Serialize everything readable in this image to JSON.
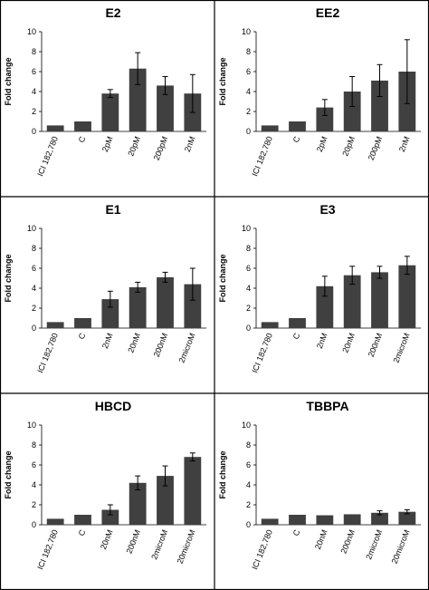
{
  "chart_data": [
    {
      "type": "bar",
      "title": "E2",
      "ylabel": "Fold change",
      "ylim": [
        0,
        10
      ],
      "yticks": [
        "0",
        "2",
        "4",
        "6",
        "8",
        "10"
      ],
      "categories": [
        "ICI 182,780",
        "C",
        "2pM",
        "20pM",
        "200pM",
        "2nM"
      ],
      "values": [
        0.6,
        1.0,
        3.8,
        6.3,
        4.6,
        3.8
      ],
      "errors": [
        0,
        0,
        0.4,
        1.6,
        0.9,
        1.9
      ],
      "color": "#404040"
    },
    {
      "type": "bar",
      "title": "EE2",
      "ylabel": "Fold change",
      "ylim": [
        0,
        10
      ],
      "yticks": [
        "0",
        "2",
        "4",
        "6",
        "8",
        "10"
      ],
      "categories": [
        "ICI 182,780",
        "C",
        "2pM",
        "20pM",
        "200pM",
        "2nM"
      ],
      "values": [
        0.6,
        1.0,
        2.4,
        4.0,
        5.1,
        6.0
      ],
      "errors": [
        0,
        0,
        0.8,
        1.5,
        1.6,
        3.2
      ],
      "color": "#404040"
    },
    {
      "type": "bar",
      "title": "E1",
      "ylabel": "Fold change",
      "ylim": [
        0,
        10
      ],
      "yticks": [
        "0",
        "2",
        "4",
        "6",
        "8",
        "10"
      ],
      "categories": [
        "ICI 182,780",
        "C",
        "2nM",
        "20nM",
        "200nM",
        "2microM"
      ],
      "values": [
        0.6,
        1.0,
        2.9,
        4.1,
        5.1,
        4.4
      ],
      "errors": [
        0,
        0,
        0.8,
        0.5,
        0.5,
        1.6
      ],
      "color": "#404040"
    },
    {
      "type": "bar",
      "title": "E3",
      "ylabel": "Fold change",
      "ylim": [
        0,
        10
      ],
      "yticks": [
        "0",
        "2",
        "4",
        "6",
        "8",
        "10"
      ],
      "categories": [
        "ICI 182,780",
        "C",
        "2nM",
        "20nM",
        "200nM",
        "2microM"
      ],
      "values": [
        0.6,
        1.0,
        4.2,
        5.3,
        5.6,
        6.3
      ],
      "errors": [
        0,
        0,
        1.0,
        0.9,
        0.6,
        0.9
      ],
      "color": "#404040"
    },
    {
      "type": "bar",
      "title": "HBCD",
      "ylabel": "Fold change",
      "ylim": [
        0,
        10
      ],
      "yticks": [
        "0",
        "2",
        "4",
        "6",
        "8",
        "10"
      ],
      "categories": [
        "ICI 182,780",
        "C",
        "20nM",
        "200nM",
        "2microM",
        "20microM"
      ],
      "values": [
        0.6,
        1.0,
        1.5,
        4.2,
        4.9,
        6.8
      ],
      "errors": [
        0,
        0,
        0.5,
        0.7,
        1.0,
        0.4
      ],
      "color": "#404040"
    },
    {
      "type": "bar",
      "title": "TBBPA",
      "ylabel": "Fold change",
      "ylim": [
        0,
        10
      ],
      "yticks": [
        "0",
        "2",
        "4",
        "6",
        "8",
        "10"
      ],
      "categories": [
        "ICI 182,780",
        "C",
        "20nM",
        "200nM",
        "2microM",
        "20microM"
      ],
      "values": [
        0.6,
        1.0,
        0.95,
        1.05,
        1.2,
        1.3
      ],
      "errors": [
        0,
        0,
        0,
        0,
        0.2,
        0.2
      ],
      "color": "#404040"
    }
  ]
}
